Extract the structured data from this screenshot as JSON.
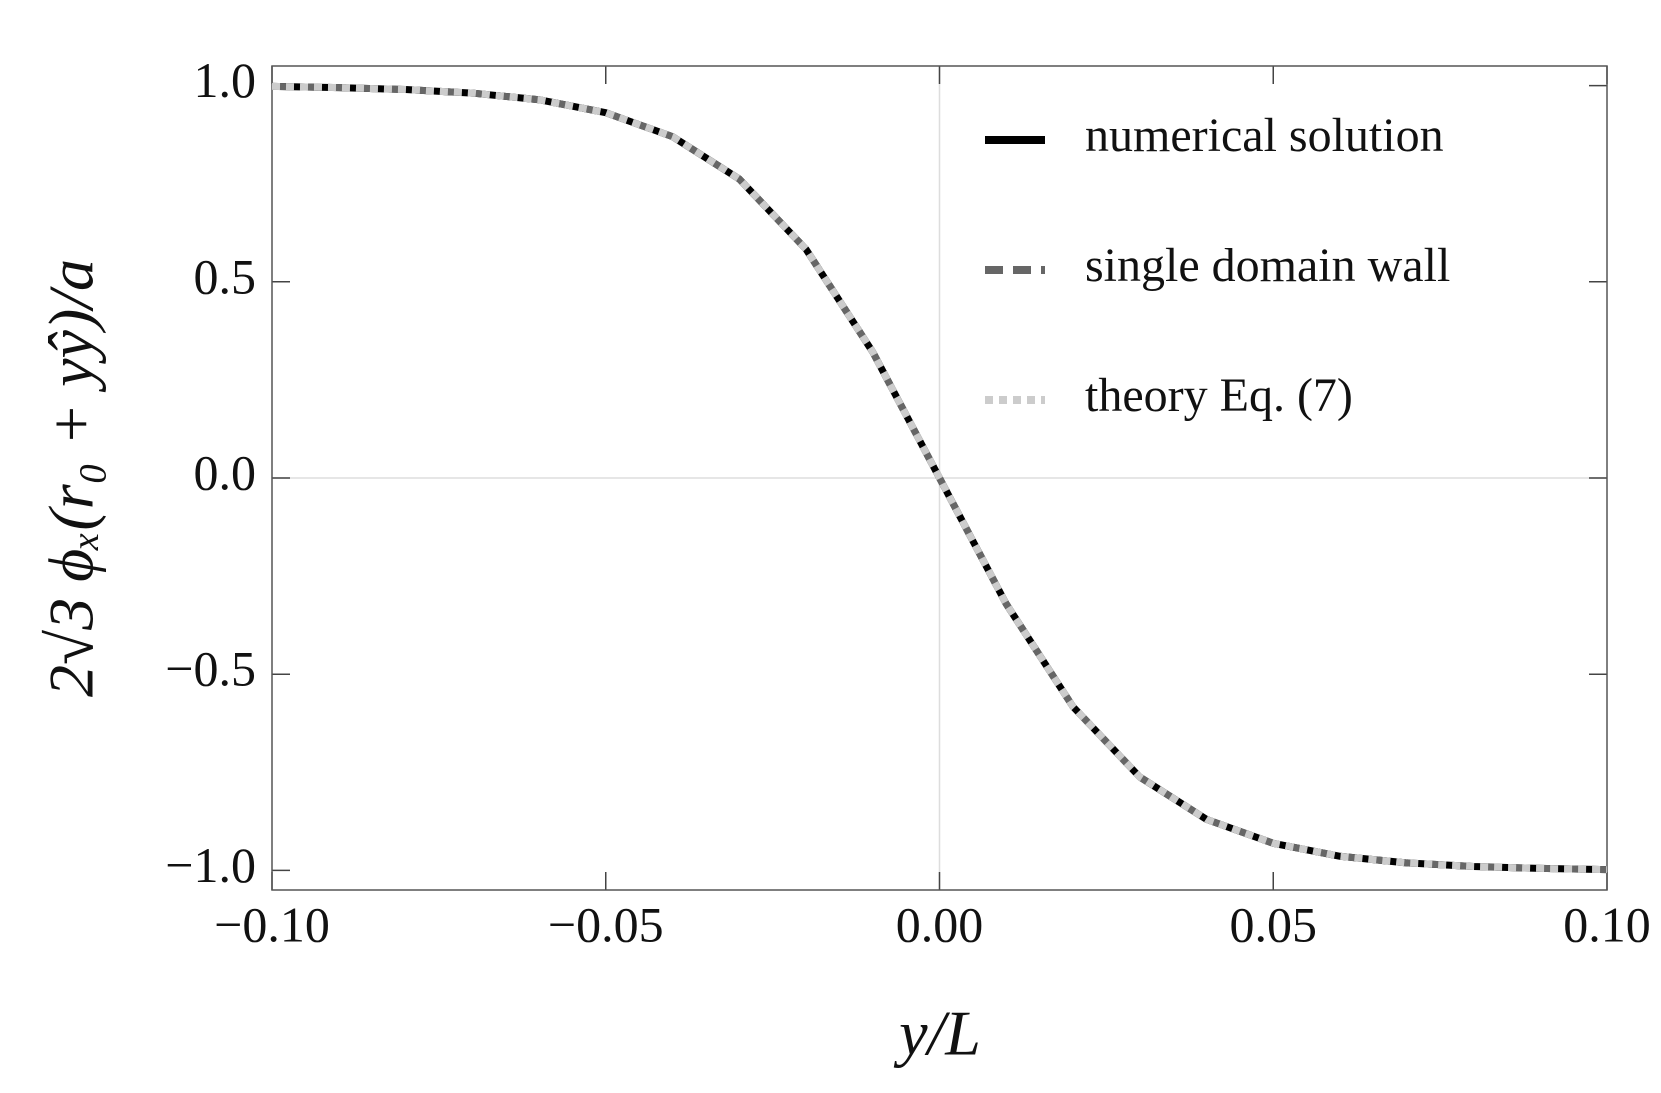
{
  "chart_data": {
    "type": "line",
    "xlabel": "y/L",
    "ylabel": "2√3 ϕₓ(r₀ + yŷ)/a",
    "x": [
      -0.1,
      -0.09,
      -0.08,
      -0.07,
      -0.06,
      -0.05,
      -0.04,
      -0.03,
      -0.02,
      -0.01,
      0.0,
      0.01,
      0.02,
      0.03,
      0.04,
      0.05,
      0.06,
      0.07,
      0.08,
      0.09,
      0.1
    ],
    "series": [
      {
        "name": "numerical solution",
        "color": "#000000",
        "dash": "solid",
        "values": [
          0.998,
          0.995,
          0.99,
          0.981,
          0.964,
          0.931,
          0.87,
          0.762,
          0.583,
          0.321,
          0.0,
          -0.321,
          -0.583,
          -0.762,
          -0.87,
          -0.931,
          -0.964,
          -0.981,
          -0.99,
          -0.995,
          -0.998
        ]
      },
      {
        "name": "single domain wall",
        "color": "#666666",
        "dash": "dashed",
        "values": [
          0.998,
          0.995,
          0.99,
          0.981,
          0.964,
          0.931,
          0.87,
          0.762,
          0.583,
          0.321,
          0.0,
          -0.321,
          -0.583,
          -0.762,
          -0.87,
          -0.931,
          -0.964,
          -0.981,
          -0.99,
          -0.995,
          -0.998
        ]
      },
      {
        "name": "theory Eq. (7)",
        "color": "#cccccc",
        "dash": "dotted",
        "values": [
          0.998,
          0.995,
          0.99,
          0.981,
          0.964,
          0.931,
          0.87,
          0.762,
          0.583,
          0.321,
          0.0,
          -0.321,
          -0.583,
          -0.762,
          -0.87,
          -0.931,
          -0.964,
          -0.981,
          -0.99,
          -0.995,
          -0.998
        ]
      }
    ],
    "xlim": [
      -0.1,
      0.1
    ],
    "xticks": [
      {
        "value": -0.1,
        "label": "−0.10"
      },
      {
        "value": -0.05,
        "label": "−0.05"
      },
      {
        "value": 0,
        "label": "0.00"
      },
      {
        "value": 0.05,
        "label": "0.05"
      },
      {
        "value": 0.1,
        "label": "0.10"
      }
    ],
    "ylim": [
      -1.05,
      1.05
    ],
    "yticks": [
      {
        "value": -1,
        "label": "−1.0"
      },
      {
        "value": -0.5,
        "label": "−0.5"
      },
      {
        "value": 0,
        "label": "0.0"
      },
      {
        "value": 0.5,
        "label": "0.5"
      },
      {
        "value": 1,
        "label": "1.0"
      }
    ],
    "zero_lines": true,
    "legend": "upper right"
  }
}
